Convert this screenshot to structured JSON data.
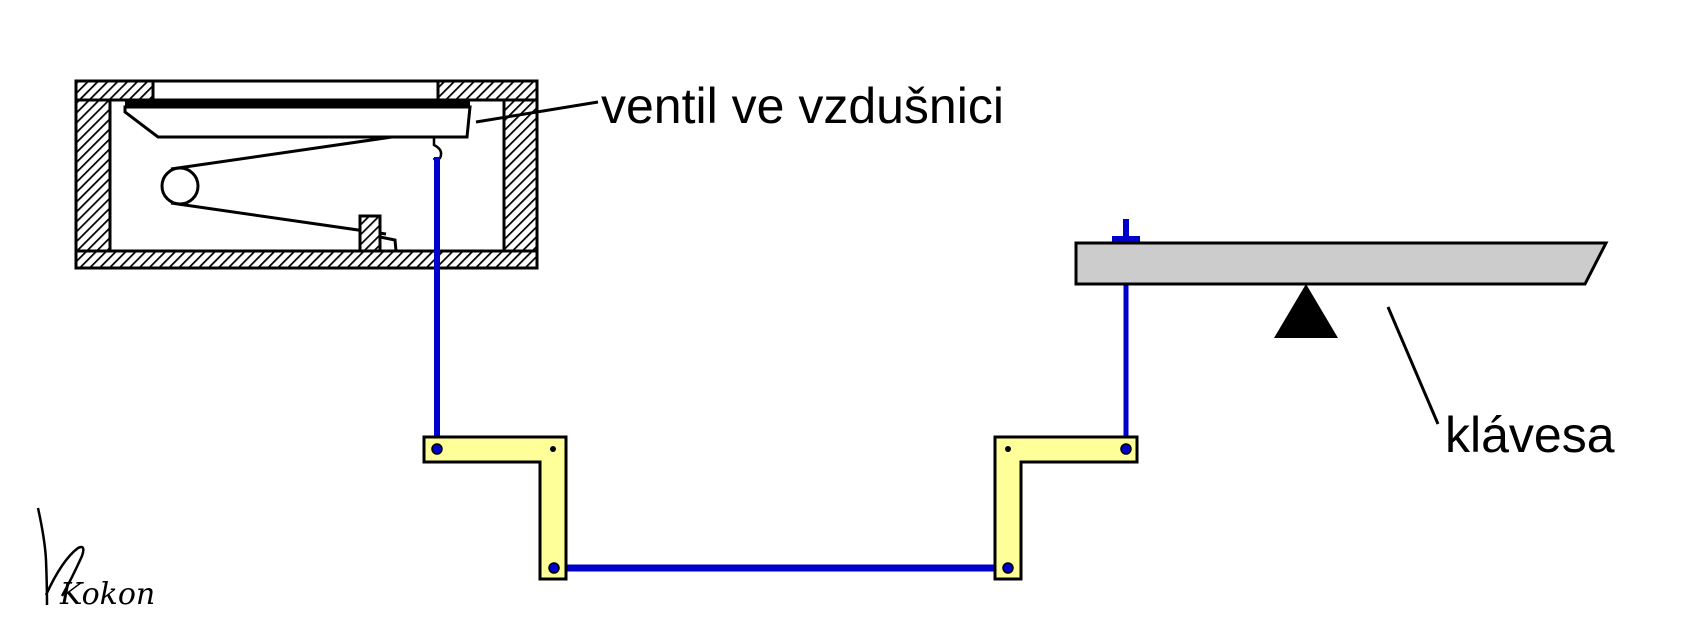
{
  "labels": {
    "valve": "ventil ve vzdušnici",
    "key": "klávesa"
  },
  "signature": {
    "text": "Kokon"
  },
  "colors": {
    "trace_rod": "#0000cc",
    "square": "#ffff99",
    "key_body": "#cccccc",
    "hatch": "#000000",
    "background": "#ffffff"
  }
}
